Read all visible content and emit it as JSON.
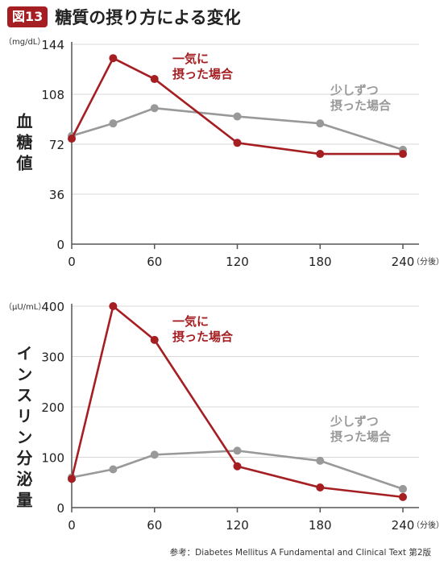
{
  "figure": {
    "badge": "図13",
    "title": "糖質の摂り方による変化",
    "reference": "参考：Diabetes Mellitus A Fundamental and Clinical Text 第2版"
  },
  "colors": {
    "fast": "#a51e22",
    "slow": "#999999",
    "axis": "#555555",
    "grid": "#d8d8d8"
  },
  "chart_data": [
    {
      "type": "line",
      "ylabel": "血糖値",
      "yunit": "（mg/dL）",
      "xunit": "（分後）",
      "ylim": [
        0,
        144
      ],
      "yticks": [
        0,
        36,
        72,
        108,
        144
      ],
      "xlim": [
        0,
        240
      ],
      "xticks": [
        0,
        60,
        120,
        180,
        240
      ],
      "grid": true,
      "series": [
        {
          "name": "一気に摂った場合",
          "label_lines": [
            "一気に",
            "摂った場合"
          ],
          "color": "#a51e22",
          "points": [
            [
              0,
              76
            ],
            [
              30,
              134
            ],
            [
              60,
              119
            ],
            [
              120,
              73
            ],
            [
              180,
              65
            ],
            [
              240,
              65
            ]
          ]
        },
        {
          "name": "少しずつ摂った場合",
          "label_lines": [
            "少しずつ",
            "摂った場合"
          ],
          "color": "#999999",
          "points": [
            [
              0,
              78
            ],
            [
              30,
              87
            ],
            [
              60,
              98
            ],
            [
              120,
              92
            ],
            [
              180,
              87
            ],
            [
              240,
              68
            ]
          ]
        }
      ]
    },
    {
      "type": "line",
      "ylabel": "インスリン分泌量",
      "yunit": "（μU/mL）",
      "xunit": "（分後）",
      "ylim": [
        0,
        400
      ],
      "yticks": [
        0,
        100,
        200,
        300,
        400
      ],
      "xlim": [
        0,
        240
      ],
      "xticks": [
        0,
        60,
        120,
        180,
        240
      ],
      "grid": true,
      "series": [
        {
          "name": "一気に摂った場合",
          "label_lines": [
            "一気に",
            "摂った場合"
          ],
          "color": "#a51e22",
          "points": [
            [
              0,
              57
            ],
            [
              30,
              400
            ],
            [
              60,
              333
            ],
            [
              120,
              82
            ],
            [
              180,
              40
            ],
            [
              240,
              21
            ]
          ]
        },
        {
          "name": "少しずつ摂った場合",
          "label_lines": [
            "少しずつ",
            "摂った場合"
          ],
          "color": "#999999",
          "points": [
            [
              0,
              60
            ],
            [
              30,
              76
            ],
            [
              60,
              105
            ],
            [
              120,
              113
            ],
            [
              180,
              93
            ],
            [
              240,
              37
            ]
          ]
        }
      ]
    }
  ]
}
